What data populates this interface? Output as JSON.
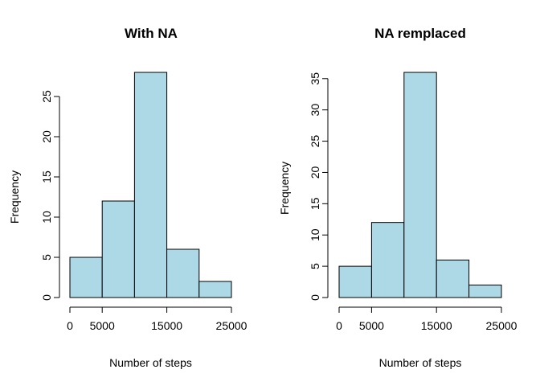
{
  "colors": {
    "bar_fill": "#add8e6",
    "bar_stroke": "#000000"
  },
  "chart_data": [
    {
      "type": "bar",
      "title": "With NA",
      "xlabel": "Number of steps",
      "ylabel": "Frequency",
      "bins": [
        {
          "from": 0,
          "to": 5000,
          "count": 5
        },
        {
          "from": 5000,
          "to": 10000,
          "count": 12
        },
        {
          "from": 10000,
          "to": 15000,
          "count": 28
        },
        {
          "from": 15000,
          "to": 20000,
          "count": 6
        },
        {
          "from": 20000,
          "to": 25000,
          "count": 2
        }
      ],
      "xlim": [
        0,
        25000
      ],
      "ylim": [
        0,
        28
      ],
      "xticks": [
        0,
        5000,
        15000,
        25000
      ],
      "yticks": [
        0,
        5,
        10,
        15,
        20,
        25
      ],
      "grid": false
    },
    {
      "type": "bar",
      "title": "NA remplaced",
      "xlabel": "Number of steps",
      "ylabel": "Frequency",
      "bins": [
        {
          "from": 0,
          "to": 5000,
          "count": 5
        },
        {
          "from": 5000,
          "to": 10000,
          "count": 12
        },
        {
          "from": 10000,
          "to": 15000,
          "count": 36
        },
        {
          "from": 15000,
          "to": 20000,
          "count": 6
        },
        {
          "from": 20000,
          "to": 25000,
          "count": 2
        }
      ],
      "xlim": [
        0,
        25000
      ],
      "ylim": [
        0,
        36
      ],
      "xticks": [
        0,
        5000,
        15000,
        25000
      ],
      "yticks": [
        0,
        5,
        10,
        15,
        20,
        25,
        30,
        35
      ],
      "grid": false
    }
  ]
}
